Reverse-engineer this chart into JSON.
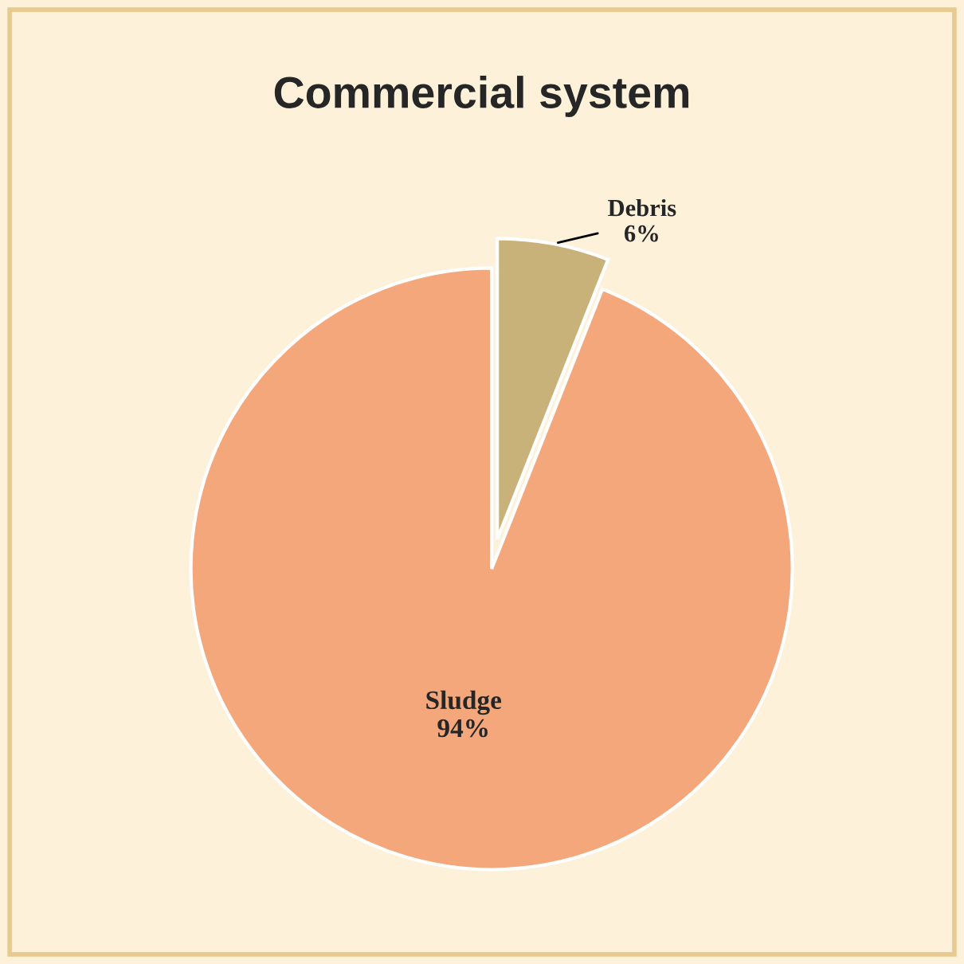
{
  "chart_data": {
    "type": "pie",
    "title": "Commercial system",
    "categories": [
      "Debris",
      "Sludge"
    ],
    "values": [
      6,
      94
    ],
    "value_labels": [
      "6%",
      "94%"
    ],
    "colors": [
      "#c9b27a",
      "#f4a77a"
    ]
  }
}
